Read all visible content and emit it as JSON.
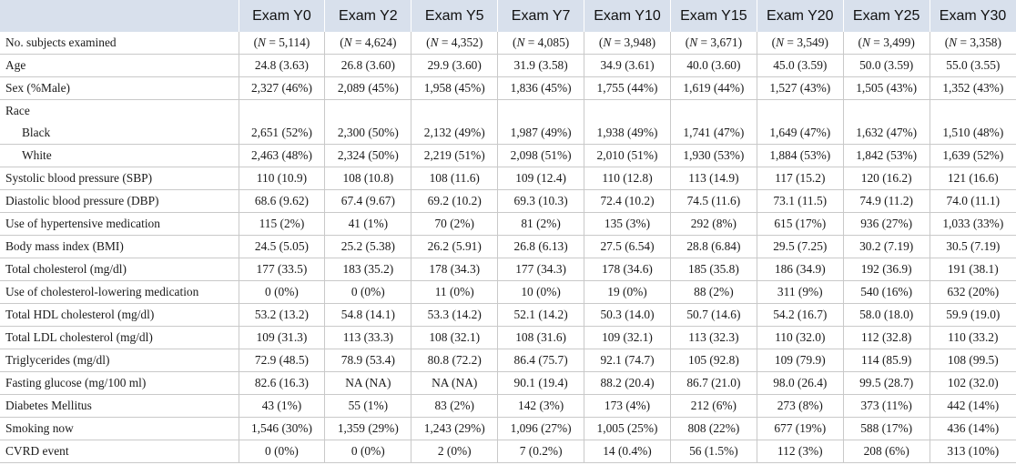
{
  "columns": [
    "",
    "Exam Y0",
    "Exam Y2",
    "Exam Y5",
    "Exam Y7",
    "Exam Y10",
    "Exam Y15",
    "Exam Y20",
    "Exam Y25",
    "Exam Y30"
  ],
  "rows": [
    {
      "label": "No. subjects examined",
      "n_row": true,
      "values": [
        "5,114",
        "4,624",
        "4,352",
        "4,085",
        "3,948",
        "3,671",
        "3,549",
        "3,499",
        "3,358"
      ]
    },
    {
      "label": "Age",
      "values": [
        "24.8 (3.63)",
        "26.8 (3.60)",
        "29.9 (3.60)",
        "31.9 (3.58)",
        "34.9 (3.61)",
        "40.0 (3.60)",
        "45.0 (3.59)",
        "50.0 (3.59)",
        "55.0 (3.55)"
      ]
    },
    {
      "label": "Sex (%Male)",
      "values": [
        "2,327 (46%)",
        "2,089 (45%)",
        "1,958 (45%)",
        "1,836 (45%)",
        "1,755 (44%)",
        "1,619 (44%)",
        "1,527 (43%)",
        "1,505 (43%)",
        "1,352 (43%)"
      ]
    },
    {
      "label": "Race",
      "section": true,
      "values": [
        "",
        "",
        "",
        "",
        "",
        "",
        "",
        "",
        ""
      ]
    },
    {
      "label": "Black",
      "sub": true,
      "values": [
        "2,651 (52%)",
        "2,300 (50%)",
        "2,132 (49%)",
        "1,987 (49%)",
        "1,938 (49%)",
        "1,741 (47%)",
        "1,649 (47%)",
        "1,632 (47%)",
        "1,510 (48%)"
      ]
    },
    {
      "label": "White",
      "sub": true,
      "values": [
        "2,463 (48%)",
        "2,324 (50%)",
        "2,219 (51%)",
        "2,098 (51%)",
        "2,010 (51%)",
        "1,930 (53%)",
        "1,884 (53%)",
        "1,842 (53%)",
        "1,639 (52%)"
      ]
    },
    {
      "label": "Systolic blood pressure (SBP)",
      "values": [
        "110 (10.9)",
        "108 (10.8)",
        "108 (11.6)",
        "109 (12.4)",
        "110 (12.8)",
        "113 (14.9)",
        "117 (15.2)",
        "120 (16.2)",
        "121 (16.6)"
      ]
    },
    {
      "label": "Diastolic blood pressure (DBP)",
      "values": [
        "68.6 (9.62)",
        "67.4 (9.67)",
        "69.2 (10.2)",
        "69.3 (10.3)",
        "72.4 (10.2)",
        "74.5 (11.6)",
        "73.1 (11.5)",
        "74.9 (11.2)",
        "74.0 (11.1)"
      ]
    },
    {
      "label": "Use of hypertensive medication",
      "values": [
        "115 (2%)",
        "41 (1%)",
        "70 (2%)",
        "81 (2%)",
        "135 (3%)",
        "292 (8%)",
        "615 (17%)",
        "936 (27%)",
        "1,033 (33%)"
      ]
    },
    {
      "label": "Body mass index (BMI)",
      "values": [
        "24.5 (5.05)",
        "25.2 (5.38)",
        "26.2 (5.91)",
        "26.8 (6.13)",
        "27.5 (6.54)",
        "28.8 (6.84)",
        "29.5 (7.25)",
        "30.2 (7.19)",
        "30.5 (7.19)"
      ]
    },
    {
      "label": "Total cholesterol (mg/dl)",
      "values": [
        "177 (33.5)",
        "183 (35.2)",
        "178 (34.3)",
        "177 (34.3)",
        "178 (34.6)",
        "185 (35.8)",
        "186 (34.9)",
        "192 (36.9)",
        "191 (38.1)"
      ]
    },
    {
      "label": "Use of cholesterol-lowering medication",
      "values": [
        "0 (0%)",
        "0 (0%)",
        "11 (0%)",
        "10 (0%)",
        "19 (0%)",
        "88 (2%)",
        "311 (9%)",
        "540 (16%)",
        "632 (20%)"
      ]
    },
    {
      "label": "Total HDL cholesterol (mg/dl)",
      "values": [
        "53.2 (13.2)",
        "54.8 (14.1)",
        "53.3 (14.2)",
        "52.1 (14.2)",
        "50.3 (14.0)",
        "50.7 (14.6)",
        "54.2 (16.7)",
        "58.0 (18.0)",
        "59.9 (19.0)"
      ]
    },
    {
      "label": "Total LDL cholesterol (mg/dl)",
      "values": [
        "109 (31.3)",
        "113 (33.3)",
        "108 (32.1)",
        "108 (31.6)",
        "109 (32.1)",
        "113 (32.3)",
        "110 (32.0)",
        "112 (32.8)",
        "110 (33.2)"
      ]
    },
    {
      "label": "Triglycerides (mg/dl)",
      "values": [
        "72.9 (48.5)",
        "78.9 (53.4)",
        "80.8 (72.2)",
        "86.4 (75.7)",
        "92.1 (74.7)",
        "105 (92.8)",
        "109 (79.9)",
        "114 (85.9)",
        "108 (99.5)"
      ]
    },
    {
      "label": "Fasting glucose (mg/100 ml)",
      "values": [
        "82.6 (16.3)",
        "NA (NA)",
        "NA (NA)",
        "90.1 (19.4)",
        "88.2 (20.4)",
        "86.7 (21.0)",
        "98.0 (26.4)",
        "99.5 (28.7)",
        "102 (32.0)"
      ]
    },
    {
      "label": "Diabetes Mellitus",
      "values": [
        "43 (1%)",
        "55 (1%)",
        "83 (2%)",
        "142 (3%)",
        "173 (4%)",
        "212 (6%)",
        "273 (8%)",
        "373 (11%)",
        "442 (14%)"
      ]
    },
    {
      "label": "Smoking now",
      "values": [
        "1,546 (30%)",
        "1,359 (29%)",
        "1,243 (29%)",
        "1,096 (27%)",
        "1,005 (25%)",
        "808 (22%)",
        "677 (19%)",
        "588 (17%)",
        "436 (14%)"
      ]
    },
    {
      "label": "CVRD event",
      "values": [
        "0 (0%)",
        "0 (0%)",
        "2 (0%)",
        "7 (0.2%)",
        "14 (0.4%)",
        "56 (1.5%)",
        "112 (3%)",
        "208 (6%)",
        "313 (10%)"
      ]
    }
  ]
}
